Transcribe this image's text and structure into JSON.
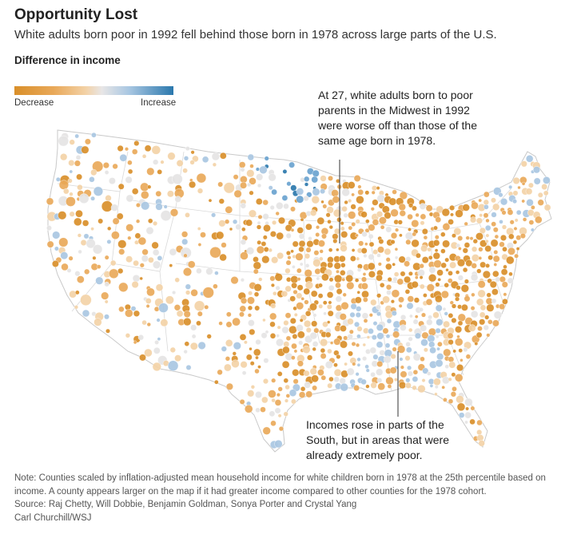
{
  "header": {
    "title": "Opportunity Lost",
    "subtitle": "White adults born poor in 1992 fell behind those born in 1978 across large parts of the U.S."
  },
  "legend": {
    "title": "Difference in income",
    "low_label": "Decrease",
    "high_label": "Increase",
    "colors": {
      "strong_decrease": "#d98f2a",
      "decrease": "#e9a95a",
      "slight_decrease": "#f3d2a7",
      "neutral": "#e5e4e4",
      "slight_increase": "#a9c7e2",
      "increase": "#6aa3cf",
      "strong_increase": "#2b78ad"
    }
  },
  "annotations": {
    "midwest": "At 27, white adults born to poor parents in the Midwest in 1992 were worse off than those of the same age born in 1978.",
    "south": "Incomes rose in parts of the South, but in areas that were already extremely poor."
  },
  "footer": {
    "note": "Note: Counties scaled by inflation-adjusted mean household income for white children born in 1978 at the 25th percentile based on income. A county appears larger on the map if it had greater income compared to other counties for the 1978 cohort.",
    "source": "Source:  Raj Chetty, Will Dobbie, Benjamin Goldman, Sonya Porter and Crystal Yang",
    "credit": "Carl Churchill/WSJ"
  }
}
